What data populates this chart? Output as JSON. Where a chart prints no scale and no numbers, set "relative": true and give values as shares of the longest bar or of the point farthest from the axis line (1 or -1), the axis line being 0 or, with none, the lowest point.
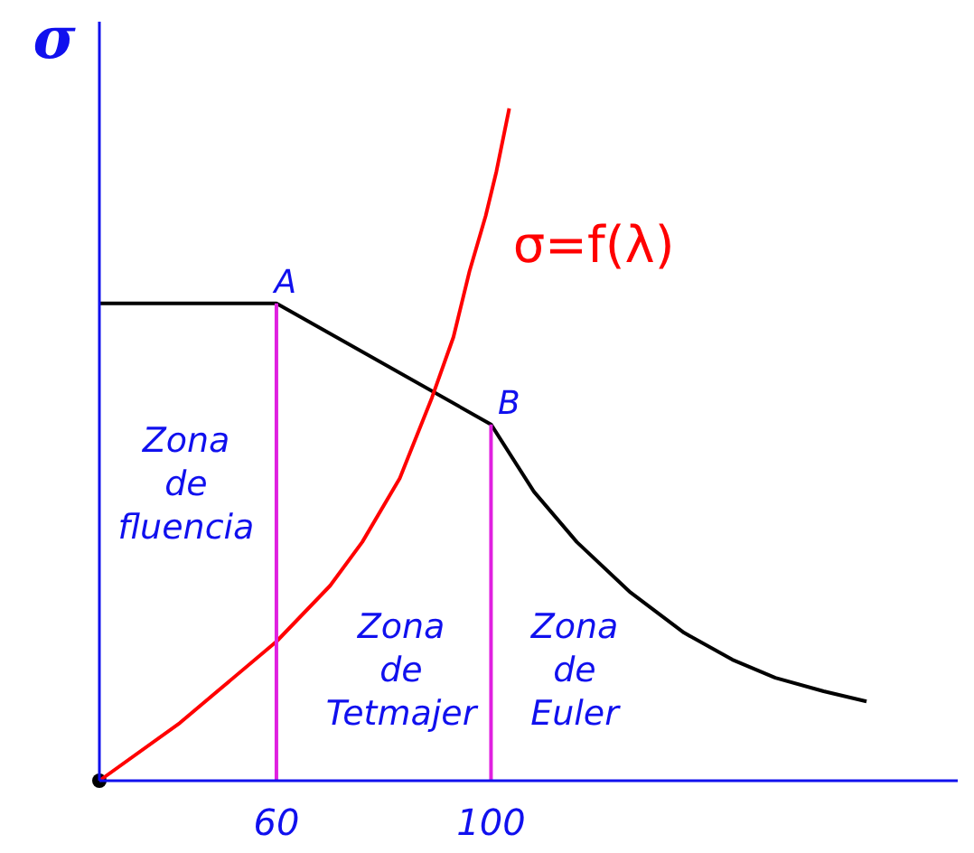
{
  "chart_data": {
    "type": "line",
    "ylabel": "σ",
    "relative": true,
    "xlim": [
      27,
      187
    ],
    "xticks": [
      60,
      100
    ],
    "line_style": "solid",
    "series": [
      {
        "color": "#000000",
        "x": [
          27,
          60,
          100,
          108,
          116,
          126,
          136,
          145,
          153,
          162,
          170
        ],
        "values": [
          0.71,
          0.71,
          0.53,
          0.43,
          0.355,
          0.28,
          0.22,
          0.18,
          0.153,
          0.133,
          0.118
        ]
      },
      {
        "name": "σ=f(λ)",
        "color": "#ff0000",
        "x": [
          27,
          42,
          60,
          70,
          76,
          83,
          89,
          93,
          96,
          99,
          101,
          103.4
        ],
        "values": [
          0,
          0.086,
          0.207,
          0.29,
          0.355,
          0.45,
          0.57,
          0.66,
          0.758,
          0.84,
          0.906,
          1
        ]
      },
      {
        "color": "#e020e0",
        "x": [
          60,
          60
        ],
        "values": [
          0,
          0.71
        ]
      },
      {
        "color": "#e020e0",
        "x": [
          100,
          100
        ],
        "values": [
          0,
          0.53
        ]
      }
    ],
    "annotations": [
      {
        "text": "A",
        "x": 60,
        "y": 0.71
      },
      {
        "text": "B",
        "x": 100,
        "y": 0.53
      },
      "Zona\nde\nfluencia",
      "Zona\nde\nTetmajer",
      "Zona\nde\nEuler"
    ]
  }
}
